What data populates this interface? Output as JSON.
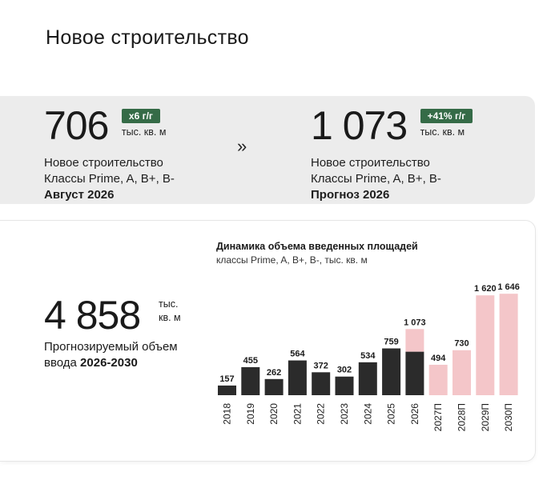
{
  "page": {
    "title": "Новое строительство"
  },
  "kpi": {
    "left": {
      "value": "706",
      "badge": "x6 г/г",
      "unit": "тыс. кв. м",
      "line1": "Новое строительство",
      "line2": "Классы Prime, A, B+, B-",
      "line3": "Август 2026"
    },
    "arrow": "»",
    "right": {
      "value": "1 073",
      "badge": "+41% г/г",
      "unit": "тыс. кв. м",
      "line1": "Новое строительство",
      "line2": "Классы Prime, A, B+, B-",
      "line3": "Прогноз 2026"
    }
  },
  "forecast": {
    "value": "4 858",
    "unit_line1": "тыс.",
    "unit_line2": "кв. м",
    "desc_line1": "Прогнозируемый объем",
    "desc_line2": "ввода ",
    "desc_bold": "2026-2030"
  },
  "colors": {
    "actual": "#2b2b2b",
    "forecast": "#f4c6c9",
    "badge": "#356b47"
  },
  "chart_data": {
    "type": "bar",
    "title": "Динамика объема введенных площадей",
    "subtitle": "классы Prime, A, B+, B-, тыс. кв. м",
    "categories": [
      "2018",
      "2019",
      "2020",
      "2021",
      "2022",
      "2023",
      "2024",
      "2025",
      "2026",
      "2027П",
      "2028П",
      "2029П",
      "2030П"
    ],
    "series": [
      {
        "values": [
          157,
          455,
          262,
          564,
          372,
          302,
          534,
          759,
          706,
          0,
          0,
          0,
          0
        ]
      },
      {
        "values": [
          0,
          0,
          0,
          0,
          0,
          0,
          0,
          0,
          367,
          494,
          730,
          1620,
          1646
        ]
      }
    ],
    "data_labels": [
      "157",
      "455",
      "262",
      "564",
      "372",
      "302",
      "534",
      "759",
      "1 073",
      "494",
      "730",
      "1 620",
      "1 646"
    ],
    "ylim": [
      0,
      1700
    ],
    "grid": false,
    "legend": "none"
  }
}
